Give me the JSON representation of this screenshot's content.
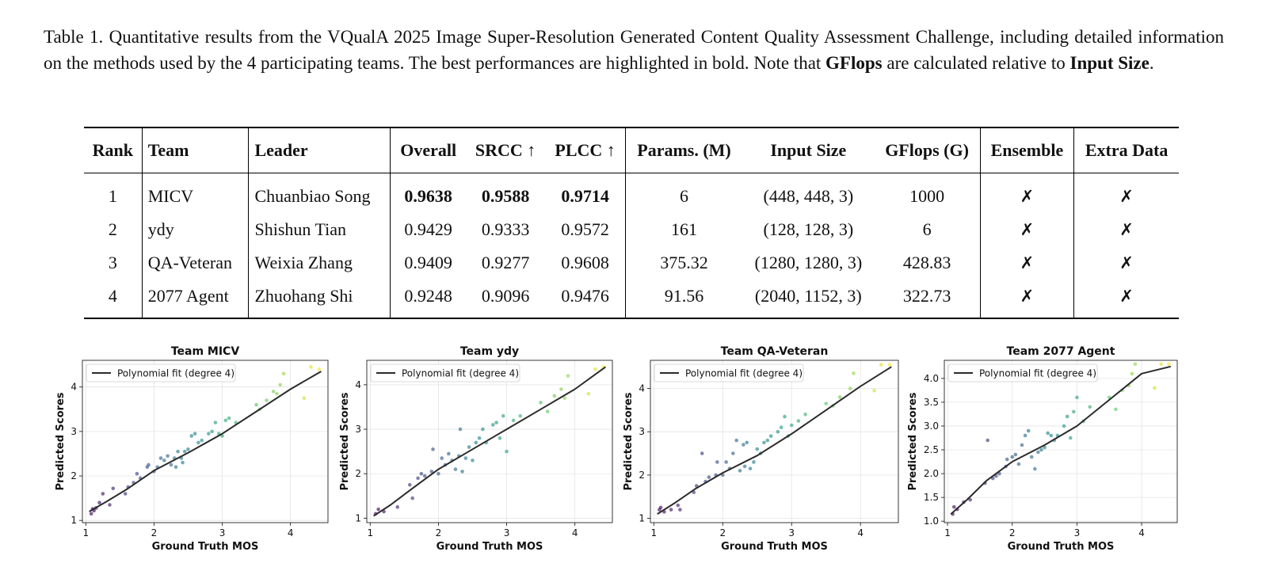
{
  "caption": {
    "text_1": "Table 1. Quantitative results from the VQualA 2025 Image Super-Resolution Generated Content Quality Assessment Challenge, including detailed information on the methods used by the 4 participating teams. The best performances are highlighted in bold. Note that ",
    "bold_1": "GFlops",
    "text_2": " are calculated relative to ",
    "bold_2": "Input Size",
    "text_3": "."
  },
  "table": {
    "headers": [
      "Rank",
      "Team",
      "Leader",
      "Overall",
      "SRCC ↑",
      "PLCC ↑",
      "Params. (M)",
      "Input Size",
      "GFlops (G)",
      "Ensemble",
      "Extra Data"
    ],
    "rows": [
      [
        "1",
        "MICV",
        "Chuanbiao Song",
        "0.9638",
        "0.9588",
        "0.9714",
        "6",
        "(448, 448, 3)",
        "1000",
        "✗",
        "✗"
      ],
      [
        "2",
        "ydy",
        "Shishun Tian",
        "0.9429",
        "0.9333",
        "0.9572",
        "161",
        "(128, 128, 3)",
        "6",
        "✗",
        "✗"
      ],
      [
        "3",
        "QA-Veteran",
        "Weixia Zhang",
        "0.9409",
        "0.9277",
        "0.9608",
        "375.32",
        "(1280, 1280, 3)",
        "428.83",
        "✗",
        "✗"
      ],
      [
        "4",
        "2077 Agent",
        "Zhuohang Shi",
        "0.9248",
        "0.9096",
        "0.9476",
        "91.56",
        "(2040, 1152, 3)",
        "322.73",
        "✗",
        "✗"
      ]
    ]
  },
  "chart_data": [
    {
      "type": "scatter",
      "title": "Team MICV",
      "xlabel": "Ground Truth MOS",
      "ylabel": "Predicted Scores",
      "xlim": [
        0.95,
        4.55
      ],
      "ylim": [
        0.95,
        4.6
      ],
      "xticks": [
        1,
        2,
        3,
        4
      ],
      "yticks": [
        1,
        2,
        3,
        4
      ],
      "legend": "Polynomial fit (degree 4)",
      "legend_position": "top-left",
      "grid": true,
      "fit_points": [
        [
          1.05,
          1.2
        ],
        [
          1.3,
          1.42
        ],
        [
          1.6,
          1.7
        ],
        [
          2.0,
          2.12
        ],
        [
          2.5,
          2.52
        ],
        [
          3.0,
          2.95
        ],
        [
          3.5,
          3.45
        ],
        [
          4.0,
          3.95
        ],
        [
          4.45,
          4.35
        ]
      ],
      "points": [
        [
          1.08,
          1.15
        ],
        [
          1.1,
          1.26
        ],
        [
          1.12,
          1.22
        ],
        [
          1.15,
          1.28
        ],
        [
          1.2,
          1.4
        ],
        [
          1.25,
          1.6
        ],
        [
          1.35,
          1.35
        ],
        [
          1.4,
          1.72
        ],
        [
          1.58,
          1.6
        ],
        [
          1.62,
          1.75
        ],
        [
          1.7,
          1.85
        ],
        [
          1.75,
          2.05
        ],
        [
          1.8,
          1.95
        ],
        [
          1.9,
          2.2
        ],
        [
          1.92,
          2.25
        ],
        [
          2.0,
          2.1
        ],
        [
          2.05,
          2.2
        ],
        [
          2.1,
          2.4
        ],
        [
          2.15,
          2.35
        ],
        [
          2.2,
          2.45
        ],
        [
          2.25,
          2.25
        ],
        [
          2.3,
          2.4
        ],
        [
          2.32,
          2.2
        ],
        [
          2.35,
          2.55
        ],
        [
          2.4,
          2.4
        ],
        [
          2.42,
          2.3
        ],
        [
          2.45,
          2.55
        ],
        [
          2.5,
          2.6
        ],
        [
          2.55,
          2.9
        ],
        [
          2.6,
          2.95
        ],
        [
          2.65,
          2.75
        ],
        [
          2.7,
          2.8
        ],
        [
          2.8,
          2.95
        ],
        [
          2.85,
          3.0
        ],
        [
          2.9,
          3.2
        ],
        [
          2.95,
          2.95
        ],
        [
          3.0,
          2.9
        ],
        [
          3.05,
          3.25
        ],
        [
          3.1,
          3.3
        ],
        [
          3.2,
          3.2
        ],
        [
          3.5,
          3.6
        ],
        [
          3.55,
          3.5
        ],
        [
          3.65,
          3.7
        ],
        [
          3.75,
          3.9
        ],
        [
          3.8,
          3.85
        ],
        [
          3.85,
          4.05
        ],
        [
          3.9,
          4.3
        ],
        [
          4.2,
          3.75
        ],
        [
          4.3,
          4.45
        ],
        [
          4.42,
          4.4
        ]
      ]
    },
    {
      "type": "scatter",
      "title": "Team ydy",
      "xlabel": "Ground Truth MOS",
      "ylabel": "Predicted Scores",
      "xlim": [
        0.95,
        4.55
      ],
      "ylim": [
        0.9,
        4.55
      ],
      "xticks": [
        1,
        2,
        3,
        4
      ],
      "yticks": [
        1,
        2,
        3,
        4
      ],
      "legend": "Polynomial fit (degree 4)",
      "legend_position": "top-left",
      "grid": true,
      "fit_points": [
        [
          1.05,
          1.05
        ],
        [
          1.3,
          1.3
        ],
        [
          1.6,
          1.65
        ],
        [
          2.0,
          2.1
        ],
        [
          2.5,
          2.55
        ],
        [
          3.0,
          3.0
        ],
        [
          3.5,
          3.45
        ],
        [
          4.0,
          3.9
        ],
        [
          4.45,
          4.4
        ]
      ],
      "points": [
        [
          1.08,
          1.1
        ],
        [
          1.12,
          1.2
        ],
        [
          1.2,
          1.15
        ],
        [
          1.4,
          1.25
        ],
        [
          1.58,
          1.75
        ],
        [
          1.62,
          1.45
        ],
        [
          1.7,
          1.9
        ],
        [
          1.75,
          2.0
        ],
        [
          1.8,
          1.95
        ],
        [
          1.9,
          2.05
        ],
        [
          1.92,
          2.55
        ],
        [
          2.0,
          2.0
        ],
        [
          2.05,
          2.35
        ],
        [
          2.1,
          2.2
        ],
        [
          2.15,
          2.45
        ],
        [
          2.2,
          2.3
        ],
        [
          2.25,
          2.1
        ],
        [
          2.3,
          2.4
        ],
        [
          2.32,
          3.0
        ],
        [
          2.35,
          2.05
        ],
        [
          2.4,
          2.35
        ],
        [
          2.45,
          2.6
        ],
        [
          2.5,
          2.3
        ],
        [
          2.55,
          2.7
        ],
        [
          2.6,
          2.8
        ],
        [
          2.65,
          3.0
        ],
        [
          2.7,
          2.7
        ],
        [
          2.8,
          3.1
        ],
        [
          2.85,
          3.15
        ],
        [
          2.9,
          2.8
        ],
        [
          2.95,
          3.3
        ],
        [
          3.0,
          2.5
        ],
        [
          3.1,
          3.2
        ],
        [
          3.2,
          3.3
        ],
        [
          3.5,
          3.6
        ],
        [
          3.6,
          3.4
        ],
        [
          3.7,
          3.75
        ],
        [
          3.8,
          3.9
        ],
        [
          3.85,
          3.7
        ],
        [
          3.9,
          4.2
        ],
        [
          4.2,
          3.8
        ],
        [
          4.3,
          4.35
        ],
        [
          4.42,
          4.4
        ]
      ]
    },
    {
      "type": "scatter",
      "title": "Team QA-Veteran",
      "xlabel": "Ground Truth MOS",
      "ylabel": "Predicted Scores",
      "xlim": [
        0.95,
        4.55
      ],
      "ylim": [
        0.9,
        4.65
      ],
      "xticks": [
        1,
        2,
        3,
        4
      ],
      "yticks": [
        1,
        2,
        3,
        4
      ],
      "legend": "Polynomial fit (degree 4)",
      "legend_position": "top-left",
      "grid": true,
      "fit_points": [
        [
          1.05,
          1.1
        ],
        [
          1.3,
          1.35
        ],
        [
          1.6,
          1.68
        ],
        [
          2.0,
          2.05
        ],
        [
          2.5,
          2.45
        ],
        [
          3.0,
          2.95
        ],
        [
          3.5,
          3.5
        ],
        [
          4.0,
          4.05
        ],
        [
          4.45,
          4.5
        ]
      ],
      "points": [
        [
          1.08,
          1.2
        ],
        [
          1.1,
          1.25
        ],
        [
          1.15,
          1.15
        ],
        [
          1.25,
          1.2
        ],
        [
          1.35,
          1.3
        ],
        [
          1.38,
          1.2
        ],
        [
          1.58,
          1.6
        ],
        [
          1.62,
          1.75
        ],
        [
          1.7,
          2.5
        ],
        [
          1.75,
          1.85
        ],
        [
          1.8,
          1.95
        ],
        [
          1.9,
          2.0
        ],
        [
          1.92,
          2.3
        ],
        [
          2.0,
          2.0
        ],
        [
          2.05,
          2.3
        ],
        [
          2.1,
          2.15
        ],
        [
          2.15,
          2.5
        ],
        [
          2.2,
          2.8
        ],
        [
          2.25,
          2.1
        ],
        [
          2.3,
          2.7
        ],
        [
          2.32,
          2.2
        ],
        [
          2.35,
          2.75
        ],
        [
          2.4,
          2.15
        ],
        [
          2.45,
          2.3
        ],
        [
          2.5,
          2.6
        ],
        [
          2.55,
          2.5
        ],
        [
          2.6,
          2.75
        ],
        [
          2.65,
          2.8
        ],
        [
          2.7,
          2.9
        ],
        [
          2.8,
          3.0
        ],
        [
          2.85,
          3.1
        ],
        [
          2.9,
          3.35
        ],
        [
          2.95,
          2.9
        ],
        [
          3.0,
          3.15
        ],
        [
          3.1,
          3.25
        ],
        [
          3.2,
          3.4
        ],
        [
          3.5,
          3.65
        ],
        [
          3.6,
          3.6
        ],
        [
          3.7,
          3.8
        ],
        [
          3.85,
          4.0
        ],
        [
          3.9,
          4.35
        ],
        [
          4.2,
          3.95
        ],
        [
          4.3,
          4.55
        ],
        [
          4.42,
          4.55
        ]
      ]
    },
    {
      "type": "scatter",
      "title": "Team 2077 Agent",
      "xlabel": "Ground Truth MOS",
      "ylabel": "Predicted Scores",
      "xlim": [
        0.95,
        4.55
      ],
      "ylim": [
        0.97,
        4.38
      ],
      "xticks": [
        1,
        2,
        3,
        4
      ],
      "yticks": [
        1.0,
        1.5,
        2.0,
        2.5,
        3.0,
        3.5,
        4.0
      ],
      "legend": "Polynomial fit (degree 4)",
      "legend_position": "top-left",
      "grid": true,
      "fit_points": [
        [
          1.05,
          1.15
        ],
        [
          1.3,
          1.45
        ],
        [
          1.6,
          1.85
        ],
        [
          2.0,
          2.25
        ],
        [
          2.5,
          2.6
        ],
        [
          3.0,
          3.0
        ],
        [
          3.5,
          3.55
        ],
        [
          4.0,
          4.1
        ],
        [
          4.45,
          4.25
        ]
      ],
      "points": [
        [
          1.08,
          1.15
        ],
        [
          1.1,
          1.3
        ],
        [
          1.15,
          1.25
        ],
        [
          1.25,
          1.4
        ],
        [
          1.35,
          1.45
        ],
        [
          1.58,
          1.8
        ],
        [
          1.62,
          2.7
        ],
        [
          1.7,
          1.9
        ],
        [
          1.75,
          1.95
        ],
        [
          1.8,
          2.0
        ],
        [
          1.9,
          2.15
        ],
        [
          1.92,
          2.3
        ],
        [
          2.0,
          2.35
        ],
        [
          2.05,
          2.4
        ],
        [
          2.1,
          2.2
        ],
        [
          2.15,
          2.6
        ],
        [
          2.2,
          2.8
        ],
        [
          2.25,
          2.9
        ],
        [
          2.3,
          2.35
        ],
        [
          2.35,
          2.1
        ],
        [
          2.4,
          2.45
        ],
        [
          2.45,
          2.5
        ],
        [
          2.5,
          2.55
        ],
        [
          2.55,
          2.85
        ],
        [
          2.6,
          2.8
        ],
        [
          2.65,
          2.7
        ],
        [
          2.7,
          2.8
        ],
        [
          2.8,
          3.0
        ],
        [
          2.85,
          3.2
        ],
        [
          2.9,
          2.75
        ],
        [
          2.95,
          3.3
        ],
        [
          3.0,
          3.6
        ],
        [
          3.1,
          3.1
        ],
        [
          3.2,
          3.4
        ],
        [
          3.5,
          3.6
        ],
        [
          3.6,
          3.35
        ],
        [
          3.7,
          3.75
        ],
        [
          3.8,
          3.85
        ],
        [
          3.85,
          4.1
        ],
        [
          3.9,
          4.3
        ],
        [
          4.2,
          3.8
        ],
        [
          4.3,
          4.3
        ],
        [
          4.42,
          4.3
        ]
      ]
    }
  ]
}
